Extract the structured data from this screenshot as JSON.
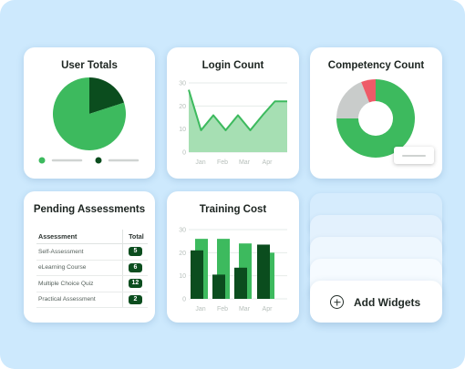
{
  "colors": {
    "background": "#cde9fd",
    "green": "#3dba5e",
    "dark_green": "#0b4d1e",
    "light_green": "#a6dfb3",
    "grey": "#c9cccb",
    "red": "#ee5a68"
  },
  "user_totals": {
    "title": "User Totals",
    "legend": [
      {
        "marker_color": "#3dba5e"
      },
      {
        "marker_color": "#0b4d1e"
      }
    ]
  },
  "login_count": {
    "title": "Login Count"
  },
  "competency_count": {
    "title": "Competency Count"
  },
  "pending_assessments": {
    "title": "Pending Assessments",
    "columns": [
      "Assessment",
      "Total"
    ],
    "rows": [
      {
        "name": "Self-Assessment",
        "total": "5"
      },
      {
        "name": "eLearning Course",
        "total": "6"
      },
      {
        "name": "Multiple Choice Quiz",
        "total": "12"
      },
      {
        "name": "Practical Assessment",
        "total": "2"
      }
    ]
  },
  "training_cost": {
    "title": "Training Cost"
  },
  "add_widgets": {
    "label": "Add Widgets",
    "icon": "plus-circle-icon"
  },
  "chart_data": [
    {
      "type": "pie",
      "title": "User Totals",
      "slices": [
        {
          "value": 80,
          "color": "#3dba5e"
        },
        {
          "value": 20,
          "color": "#0b4d1e"
        }
      ]
    },
    {
      "type": "area",
      "title": "Login Count",
      "x": [
        "",
        "Jan",
        "",
        "Feb",
        "",
        "Mar",
        "",
        "Apr",
        ""
      ],
      "x_ticks": [
        "Jan",
        "Feb",
        "Mar",
        "Apr"
      ],
      "y_ticks": [
        "0",
        "10",
        "20",
        "30"
      ],
      "values": [
        27,
        9.5,
        16,
        9.5,
        16,
        9.5,
        16,
        22,
        22
      ],
      "ylim": [
        0,
        30
      ],
      "grid": true
    },
    {
      "type": "pie",
      "title": "Competency Count",
      "donut": true,
      "slices": [
        {
          "value": 75,
          "color": "#3dba5e"
        },
        {
          "value": 19,
          "color": "#c9cccb"
        },
        {
          "value": 6,
          "color": "#ee5a68"
        }
      ]
    },
    {
      "type": "bar",
      "title": "Training Cost",
      "x_ticks": [
        "Jan",
        "Feb",
        "Mar",
        "Apr"
      ],
      "y_ticks": [
        "0",
        "10",
        "20",
        "30"
      ],
      "ylim": [
        0,
        30
      ],
      "grid": true,
      "bars": [
        {
          "back": 26,
          "front": 21
        },
        {
          "back": 26,
          "front": 10.5
        },
        {
          "back": 24,
          "front": 13.5
        },
        {
          "back": 20,
          "front": 23.5
        }
      ]
    }
  ]
}
